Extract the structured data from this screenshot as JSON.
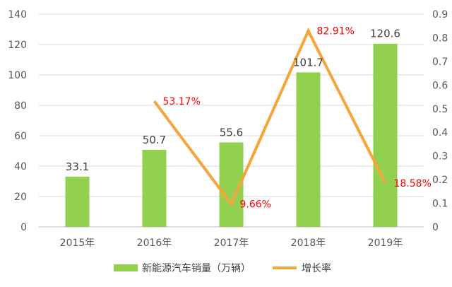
{
  "chart_data": {
    "type": "bar",
    "categories": [
      "2015年",
      "2016年",
      "2017年",
      "2018年",
      "2019年"
    ],
    "series": [
      {
        "name": "新能源汽车销量（万辆）",
        "type": "bar",
        "axis": "left",
        "values": [
          33.1,
          50.7,
          55.6,
          101.7,
          120.6
        ],
        "labels": [
          "33.1",
          "50.7",
          "55.6",
          "101.7",
          "120.6"
        ],
        "color": "#92d050"
      },
      {
        "name": "增长率",
        "type": "line",
        "axis": "right",
        "values": [
          null,
          0.5317,
          0.0966,
          0.8291,
          0.1858
        ],
        "labels": [
          "",
          "53.17%",
          "9.66%",
          "82.91%",
          "18.58%"
        ],
        "color": "#f5a53a"
      }
    ],
    "y_left": {
      "range": [
        0,
        140
      ],
      "ticks": [
        "0",
        "20",
        "40",
        "60",
        "80",
        "100",
        "120",
        "140"
      ]
    },
    "y_right": {
      "range": [
        0,
        0.9
      ],
      "ticks": [
        "0",
        "0.1",
        "0.2",
        "0.3",
        "0.4",
        "0.5",
        "0.6",
        "0.7",
        "0.8",
        "0.9"
      ]
    },
    "grid": true,
    "legend_position": "bottom",
    "label_color_percent": "#ff0000"
  }
}
